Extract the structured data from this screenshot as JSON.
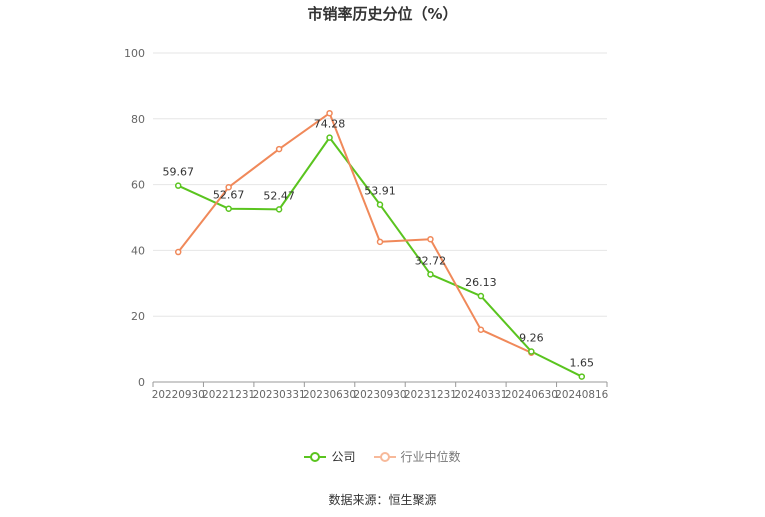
{
  "chart_data": {
    "type": "line",
    "title": "市销率历史分位（%）",
    "categories": [
      "20220930",
      "20221231",
      "20230331",
      "20230630",
      "20230930",
      "20231231",
      "20240331",
      "20240630",
      "20240816"
    ],
    "series": [
      {
        "name": "公司",
        "color": "#5ac41f",
        "values": [
          59.67,
          52.67,
          52.47,
          74.28,
          53.91,
          32.72,
          26.13,
          9.26,
          1.65
        ],
        "labels": [
          "59.67",
          "52.67",
          "52.47",
          "74.28",
          "53.91",
          "32.72",
          "26.13",
          "9.26",
          "1.65"
        ]
      },
      {
        "name": "行业中位数",
        "color": "#f0895a",
        "values": [
          39.5,
          59.2,
          70.8,
          81.7,
          42.6,
          43.4,
          15.9,
          8.9,
          null
        ]
      }
    ],
    "ylim": [
      0,
      100
    ],
    "yticks": [
      "0",
      "20",
      "40",
      "60",
      "80",
      "100"
    ],
    "grid": true,
    "legend": "bottom-center",
    "source": "数据来源：恒生聚源"
  }
}
